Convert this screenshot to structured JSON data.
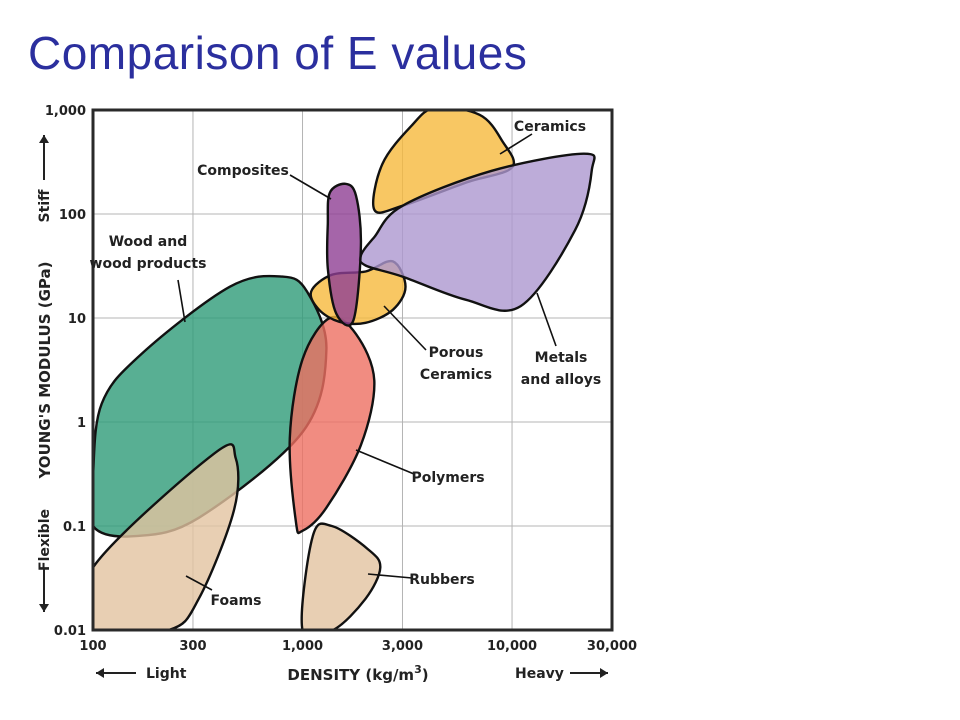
{
  "slide": {
    "title": "Comparison of E values"
  },
  "chart_data": {
    "type": "scatter",
    "subtype": "material-property-map (Ashby chart)",
    "x_axis": {
      "label": "DENSITY (kg/m",
      "label_superscript": "3",
      "label_suffix": ")",
      "scale": "log",
      "range": [
        100,
        30000
      ],
      "ticks": [
        100,
        300,
        1000,
        3000,
        10000,
        30000
      ],
      "tick_labels": [
        "100",
        "300",
        "1,000",
        "3,000",
        "10,000",
        "30,000"
      ],
      "low_hint": "Light",
      "high_hint": "Heavy"
    },
    "y_axis": {
      "label": "YOUNG'S MODULUS (GPa)",
      "scale": "log",
      "range": [
        0.01,
        1000
      ],
      "ticks": [
        0.01,
        0.1,
        1,
        10,
        100,
        1000
      ],
      "tick_labels": [
        "0.01",
        "0.1",
        "1",
        "10",
        "100",
        "1,000"
      ],
      "low_hint": "Flexible",
      "high_hint": "Stiff"
    },
    "grid": true,
    "regions": [
      {
        "name": "Wood and wood products",
        "label_lines": [
          "Wood and",
          "wood products"
        ],
        "color": "#2e9b78",
        "density_range": [
          100,
          1000
        ],
        "modulus_range": [
          0.08,
          25
        ]
      },
      {
        "name": "Foams",
        "label_lines": [
          "Foams"
        ],
        "color": "#e2c3a0",
        "density_range": [
          100,
          500
        ],
        "modulus_range": [
          0.01,
          0.5
        ]
      },
      {
        "name": "Rubbers",
        "label_lines": [
          "Rubbers"
        ],
        "color": "#e2c3a0",
        "density_range": [
          1000,
          2500
        ],
        "modulus_range": [
          0.01,
          0.1
        ]
      },
      {
        "name": "Polymers",
        "label_lines": [
          "Polymers"
        ],
        "color": "#ee6f62",
        "density_range": [
          900,
          2200
        ],
        "modulus_range": [
          0.09,
          10
        ]
      },
      {
        "name": "Porous Ceramics",
        "label_lines": [
          "Porous",
          "Ceramics"
        ],
        "color": "#f6b93c",
        "density_range": [
          1100,
          3000
        ],
        "modulus_range": [
          9,
          40
        ]
      },
      {
        "name": "Ceramics",
        "label_lines": [
          "Ceramics"
        ],
        "color": "#f6b93c",
        "density_range": [
          2000,
          10000
        ],
        "modulus_range": [
          80,
          1000
        ]
      },
      {
        "name": "Metals and alloys",
        "label_lines": [
          "Metals",
          "and alloys"
        ],
        "color": "#ad97d0",
        "density_range": [
          1700,
          22000
        ],
        "modulus_range": [
          12,
          400
        ]
      },
      {
        "name": "Composites",
        "label_lines": [
          "Composites"
        ],
        "color": "#8e3f93",
        "density_range": [
          1300,
          2000
        ],
        "modulus_range": [
          9,
          200
        ]
      }
    ]
  }
}
